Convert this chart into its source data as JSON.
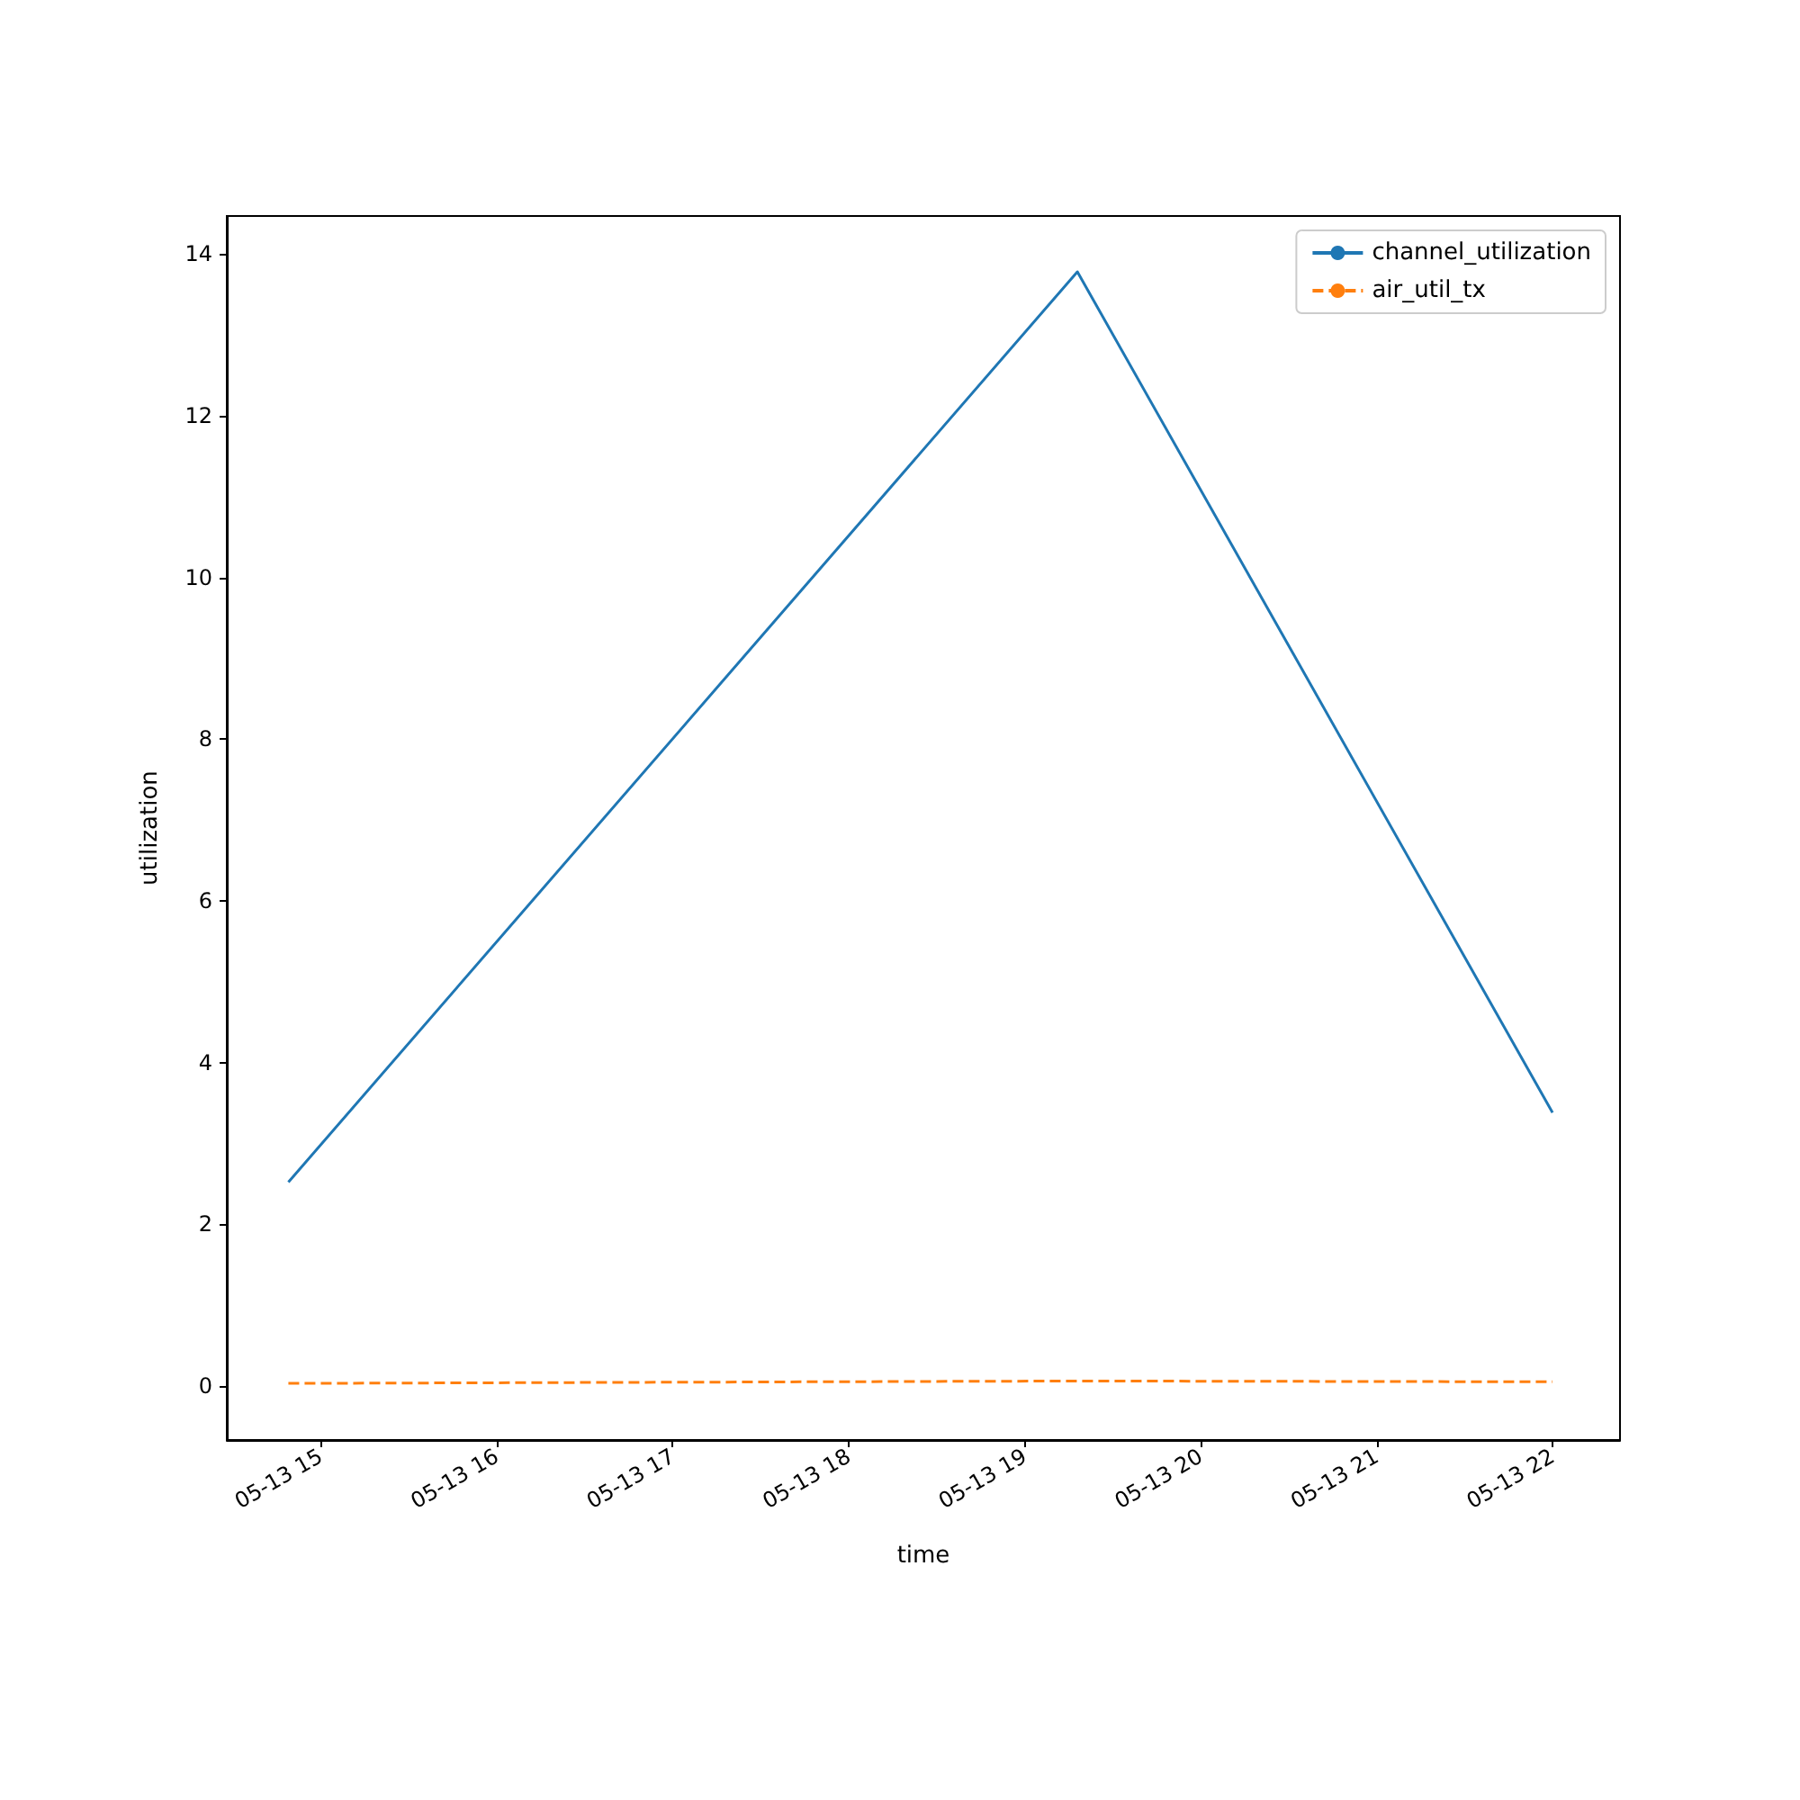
{
  "chart_data": {
    "type": "line",
    "xlabel": "time",
    "ylabel": "utilization",
    "x": [
      "--05-13T14:49",
      "--05-13T19:18",
      "--05-13T22:00"
    ],
    "series": [
      {
        "name": "channel_utilization",
        "color": "#1f77b4",
        "values": [
          2.52,
          13.78,
          3.38
        ],
        "line_style": "solid"
      },
      {
        "name": "air_util_tx",
        "color": "#ff7f0e",
        "values": [
          0.03,
          0.06,
          0.05
        ],
        "line_style": "dashed"
      }
    ],
    "xlim": [
      "--05-13T14:28",
      "--05-13T22:23"
    ],
    "xticks": [
      {
        "value": "--05-13T15:00",
        "label": "05-13 15"
      },
      {
        "value": "--05-13T16:00",
        "label": "05-13 16"
      },
      {
        "value": "--05-13T17:00",
        "label": "05-13 17"
      },
      {
        "value": "--05-13T18:00",
        "label": "05-13 18"
      },
      {
        "value": "--05-13T19:00",
        "label": "05-13 19"
      },
      {
        "value": "--05-13T20:00",
        "label": "05-13 20"
      },
      {
        "value": "--05-13T21:00",
        "label": "05-13 21"
      },
      {
        "value": "--05-13T22:00",
        "label": "05-13 22"
      }
    ],
    "ylim": [
      -0.67,
      14.47
    ],
    "yticks": [
      0,
      2,
      4,
      6,
      8,
      10,
      12,
      14
    ],
    "legend": "top right",
    "marker": "none",
    "grid": false
  }
}
